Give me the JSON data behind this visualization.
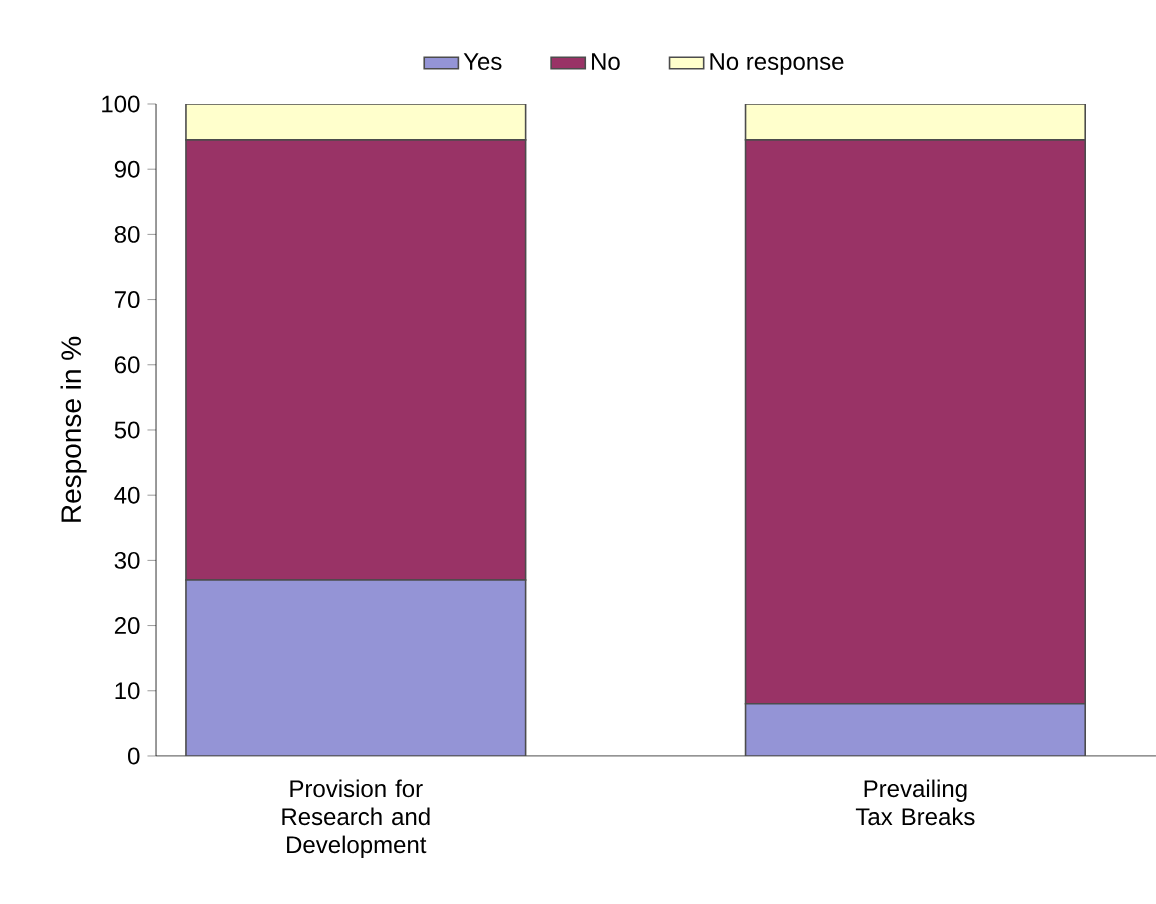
{
  "chart_data": {
    "type": "bar",
    "stacked": true,
    "ylabel": "Response in %",
    "categories": [
      "Provision for Research and Development",
      "Prevailing Tax Breaks"
    ],
    "series": [
      {
        "name": "Yes",
        "color": "#9494d6",
        "values": [
          27,
          8
        ]
      },
      {
        "name": "No",
        "color": "#993366",
        "values": [
          67.5,
          86.5
        ]
      },
      {
        "name": "No response",
        "color": "#ffffcc",
        "values": [
          5.5,
          5.5
        ]
      }
    ],
    "ylim": [
      0,
      100
    ],
    "yticks": [
      0,
      10,
      20,
      30,
      40,
      50,
      60,
      70,
      80,
      90,
      100
    ],
    "legend": "top"
  }
}
